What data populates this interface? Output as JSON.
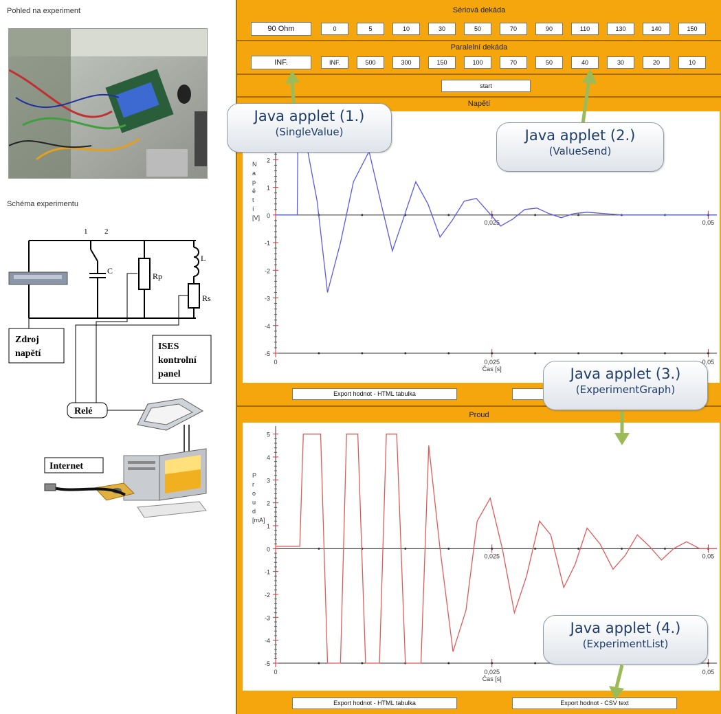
{
  "left": {
    "photo_title": "Pohled na experiment",
    "schema_title": "Schéma experimentu",
    "schematic_labels": {
      "node1": "1",
      "node2": "2",
      "c": "C",
      "l": "L",
      "rp": "Rp",
      "rs": "Rs",
      "source": [
        "Zdroj",
        "napětí"
      ],
      "ises": [
        "ISES",
        "kontrolní",
        "panel"
      ],
      "relay": "Relé",
      "internet": "Internet"
    }
  },
  "serial": {
    "title": "Sériová dekáda",
    "display": "90 Ohm",
    "buttons": [
      "0",
      "5",
      "10",
      "30",
      "50",
      "70",
      "90",
      "110",
      "130",
      "140",
      "150"
    ]
  },
  "parallel": {
    "title": "Paralelní dekáda",
    "display": "INF.",
    "buttons": [
      "INF.",
      "500",
      "300",
      "150",
      "100",
      "70",
      "50",
      "40",
      "30",
      "20",
      "10"
    ]
  },
  "start_label": "start",
  "voltage_graph": {
    "title": "Napětí",
    "ylabel": "N\na\np\ně\nt\ní\n\n[V]",
    "xlabel": "Čas [s]",
    "export_html": "Export hodnot - HTML tabulka"
  },
  "current_graph": {
    "title": "Proud",
    "ylabel": "P\nr\no\nu\nd\n[mA]",
    "xlabel": "Čas [s]",
    "export_html": "Export hodnot - HTML tabulka",
    "export_csv": "Export hodnot - CSV text"
  },
  "callouts": [
    {
      "line1": "Java applet (1.)",
      "line2": "(SingleValue)"
    },
    {
      "line1": "Java applet (2.)",
      "line2": "(ValueSend)"
    },
    {
      "line1": "Java applet (3.)",
      "line2": "(ExperimentGraph)"
    },
    {
      "line1": "Java applet (4.)",
      "line2": "(ExperimentList)"
    }
  ],
  "chart_data": [
    {
      "type": "line",
      "title": "Napětí",
      "xlabel": "Čas [s]",
      "ylabel": "Napětí [V]",
      "xlim": [
        0,
        0.051
      ],
      "ylim": [
        -5,
        3.5
      ],
      "x_ticks": [
        "0",
        "0,025",
        "0,05"
      ],
      "y_ticks": [
        "3",
        "2",
        "1",
        "0",
        "-1",
        "-2",
        "-3",
        "-4",
        "-5"
      ],
      "series": [
        {
          "color": "#5a5ae0",
          "x": [
            0,
            0.0025,
            0.0026,
            0.003,
            0.0048,
            0.006,
            0.0075,
            0.009,
            0.0108,
            0.0122,
            0.0135,
            0.0148,
            0.0162,
            0.0176,
            0.019,
            0.0204,
            0.0218,
            0.0232,
            0.0246,
            0.026,
            0.0274,
            0.0288,
            0.0302,
            0.0316,
            0.033,
            0.0345,
            0.036,
            0.04,
            0.045,
            0.051
          ],
          "y": [
            0,
            0,
            3.8,
            4.2,
            0.5,
            -2.8,
            -1.0,
            1.2,
            2.3,
            0.4,
            -1.3,
            -0.1,
            1.2,
            0.4,
            -0.8,
            -0.2,
            0.5,
            0.6,
            0.1,
            -0.4,
            -0.15,
            0.2,
            0.25,
            0.05,
            -0.1,
            0.05,
            0.1,
            0,
            0,
            0
          ]
        }
      ]
    },
    {
      "type": "line",
      "title": "Proud",
      "xlabel": "Čas [s]",
      "ylabel": "Proud [mA]",
      "xlim": [
        0,
        0.051
      ],
      "ylim": [
        -5,
        5.2
      ],
      "x_ticks": [
        "0",
        "0,025",
        "0,05"
      ],
      "y_ticks": [
        "5",
        "4",
        "3",
        "2",
        "1",
        "0",
        "-1",
        "-2",
        "-3",
        "-4",
        "-5"
      ],
      "series": [
        {
          "color": "#e05a5a",
          "x": [
            0,
            0.0028,
            0.0032,
            0.0052,
            0.006,
            0.0075,
            0.0082,
            0.0095,
            0.0104,
            0.012,
            0.0128,
            0.014,
            0.015,
            0.0168,
            0.0177,
            0.019,
            0.0205,
            0.022,
            0.0233,
            0.0248,
            0.0262,
            0.0276,
            0.029,
            0.0305,
            0.0318,
            0.0333,
            0.0346,
            0.036,
            0.0375,
            0.039,
            0.0404,
            0.0418,
            0.0432,
            0.0446,
            0.046,
            0.0475,
            0.049,
            0.051
          ],
          "y": [
            0.1,
            0.1,
            5,
            5,
            -5,
            -5,
            5,
            5,
            -5,
            -5,
            5,
            5,
            -5,
            -5,
            4.5,
            0,
            -4.5,
            -2.7,
            1.2,
            2.2,
            0,
            -2.8,
            -1.2,
            1.2,
            0.6,
            -1.7,
            -0.7,
            0.9,
            0.2,
            -0.9,
            -0.3,
            0.6,
            0.1,
            -0.5,
            0,
            0.3,
            0,
            0
          ]
        }
      ]
    }
  ]
}
